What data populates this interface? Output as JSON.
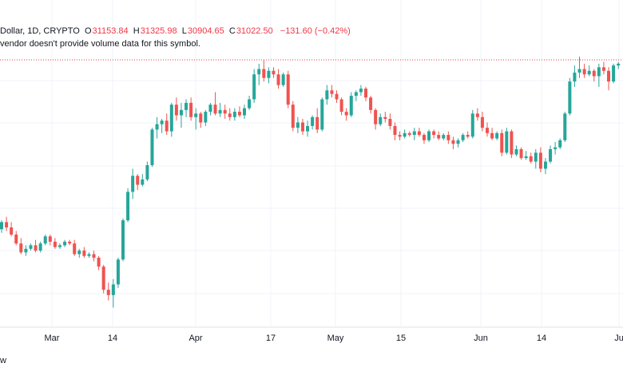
{
  "header": {
    "symbol_fragment": "Dollar, 1D, CRYPTO",
    "open_label": "O",
    "open_value": "31153.84",
    "high_label": "H",
    "high_value": "31325.98",
    "low_label": "L",
    "low_value": "30904.65",
    "close_label": "C",
    "close_value": "31022.50",
    "change": "−131.60 (−0.42%)",
    "volume_note": "vendor doesn't provide volume data for this symbol."
  },
  "footer": {
    "brand_fragment": "w"
  },
  "colors": {
    "up": "#26a69a",
    "down": "#ef5350",
    "grid": "#f0f3fa",
    "axis_text": "#131722",
    "price_line": "#f23645"
  },
  "chart_data": {
    "type": "candlestick",
    "title": "",
    "xlabel": "",
    "ylabel": "",
    "x_ticks": [
      "Mar",
      "14",
      "Apr",
      "17",
      "May",
      "15",
      "Jun",
      "14",
      "Ju"
    ],
    "ylim": [
      16300,
      31900
    ],
    "grid": true,
    "current_price": 31022.5,
    "candles": [
      [
        21800,
        22300,
        21600,
        22200
      ],
      [
        22200,
        22500,
        21700,
        21900
      ],
      [
        21900,
        22200,
        21400,
        21500
      ],
      [
        21500,
        21700,
        20900,
        21000
      ],
      [
        21000,
        21300,
        20400,
        20500
      ],
      [
        20500,
        20900,
        20300,
        20700
      ],
      [
        20700,
        21000,
        20600,
        20900
      ],
      [
        20900,
        21200,
        20500,
        20600
      ],
      [
        20600,
        21100,
        20500,
        21000
      ],
      [
        21000,
        21500,
        20900,
        21400
      ],
      [
        21400,
        21500,
        20900,
        21100
      ],
      [
        21100,
        21300,
        20700,
        20800
      ],
      [
        20800,
        21000,
        20700,
        20900
      ],
      [
        20900,
        21200,
        20800,
        21100
      ],
      [
        21100,
        21200,
        20900,
        21000
      ],
      [
        21000,
        21200,
        20300,
        20400
      ],
      [
        20400,
        20700,
        20200,
        20600
      ],
      [
        20600,
        20800,
        20200,
        20300
      ],
      [
        20300,
        20500,
        20200,
        20400
      ],
      [
        20400,
        20600,
        20000,
        20200
      ],
      [
        20200,
        20300,
        19500,
        19700
      ],
      [
        19700,
        19800,
        18200,
        18400
      ],
      [
        18400,
        18800,
        17800,
        18100
      ],
      [
        18100,
        19000,
        17400,
        18700
      ],
      [
        18700,
        20200,
        18500,
        20100
      ],
      [
        20100,
        22400,
        20000,
        22300
      ],
      [
        22300,
        24100,
        22200,
        23900
      ],
      [
        23900,
        25200,
        23500,
        24800
      ],
      [
        24800,
        24900,
        24000,
        24300
      ],
      [
        24300,
        24900,
        24200,
        24600
      ],
      [
        24600,
        25600,
        24500,
        25400
      ],
      [
        25400,
        27500,
        25300,
        27400
      ],
      [
        27400,
        28100,
        26900,
        27700
      ],
      [
        27700,
        28000,
        27200,
        27900
      ],
      [
        27900,
        28300,
        27100,
        27300
      ],
      [
        27300,
        28900,
        27000,
        28800
      ],
      [
        28800,
        29200,
        27900,
        28200
      ],
      [
        28200,
        28900,
        27500,
        28500
      ],
      [
        28500,
        29100,
        28100,
        28900
      ],
      [
        28900,
        29200,
        27900,
        28100
      ],
      [
        28100,
        28600,
        27400,
        28300
      ],
      [
        28300,
        28400,
        27500,
        27800
      ],
      [
        27800,
        28500,
        27600,
        28400
      ],
      [
        28400,
        28900,
        28200,
        28800
      ],
      [
        28800,
        29500,
        28200,
        28300
      ],
      [
        28300,
        28900,
        28100,
        28500
      ],
      [
        28500,
        28800,
        28000,
        28300
      ],
      [
        28300,
        28600,
        27900,
        28100
      ],
      [
        28100,
        28600,
        27900,
        28400
      ],
      [
        28400,
        28700,
        28100,
        28200
      ],
      [
        28200,
        28800,
        28000,
        28600
      ],
      [
        28600,
        29300,
        28500,
        29100
      ],
      [
        29100,
        30800,
        28900,
        30500
      ],
      [
        30500,
        31100,
        29900,
        30800
      ],
      [
        30800,
        31300,
        30100,
        30300
      ],
      [
        30300,
        30900,
        30000,
        30700
      ],
      [
        30700,
        30900,
        30300,
        30500
      ],
      [
        30500,
        30800,
        29700,
        29900
      ],
      [
        29900,
        30600,
        29800,
        30500
      ],
      [
        30500,
        30700,
        28600,
        28800
      ],
      [
        28800,
        29000,
        27300,
        27500
      ],
      [
        27500,
        28100,
        27200,
        27800
      ],
      [
        27800,
        28000,
        27100,
        27300
      ],
      [
        27300,
        27900,
        27000,
        27600
      ],
      [
        27600,
        28200,
        27400,
        28100
      ],
      [
        28100,
        28600,
        27200,
        27400
      ],
      [
        27400,
        29200,
        27300,
        29100
      ],
      [
        29100,
        29900,
        28800,
        29600
      ],
      [
        29600,
        29900,
        29200,
        29400
      ],
      [
        29400,
        29600,
        28900,
        29100
      ],
      [
        29100,
        29200,
        28200,
        28400
      ],
      [
        28400,
        28600,
        27900,
        28200
      ],
      [
        28200,
        29500,
        28100,
        29300
      ],
      [
        29300,
        29600,
        29000,
        29500
      ],
      [
        29500,
        29900,
        29300,
        29700
      ],
      [
        29700,
        29800,
        29000,
        29200
      ],
      [
        29200,
        29300,
        28300,
        28500
      ],
      [
        28500,
        28600,
        27400,
        27700
      ],
      [
        27700,
        28300,
        27600,
        28100
      ],
      [
        28100,
        28400,
        27800,
        28000
      ],
      [
        28000,
        28300,
        27400,
        27600
      ],
      [
        27600,
        27800,
        26800,
        27100
      ],
      [
        27100,
        27300,
        26800,
        27000
      ],
      [
        27000,
        27400,
        26900,
        27200
      ],
      [
        27200,
        27300,
        27000,
        27100
      ],
      [
        27100,
        27500,
        26800,
        27300
      ],
      [
        27300,
        27500,
        27000,
        27100
      ],
      [
        27100,
        27200,
        26600,
        26800
      ],
      [
        26800,
        27400,
        26700,
        27300
      ],
      [
        27300,
        27400,
        26900,
        27100
      ],
      [
        27100,
        27300,
        26800,
        26900
      ],
      [
        26900,
        27200,
        26800,
        27100
      ],
      [
        27100,
        27300,
        26600,
        26800
      ],
      [
        26800,
        27000,
        26300,
        26600
      ],
      [
        26600,
        26900,
        26400,
        26800
      ],
      [
        26800,
        27200,
        26700,
        27100
      ],
      [
        27100,
        27300,
        26900,
        27000
      ],
      [
        27000,
        28500,
        26900,
        28300
      ],
      [
        28300,
        28600,
        27900,
        28100
      ],
      [
        28100,
        28400,
        27300,
        27500
      ],
      [
        27500,
        27800,
        27000,
        27200
      ],
      [
        27200,
        27500,
        26800,
        26900
      ],
      [
        26900,
        27300,
        26800,
        27200
      ],
      [
        27200,
        27400,
        25900,
        26100
      ],
      [
        26100,
        27500,
        26000,
        27300
      ],
      [
        27300,
        27400,
        25800,
        26000
      ],
      [
        26000,
        26500,
        25900,
        26300
      ],
      [
        26300,
        26400,
        25700,
        25800
      ],
      [
        25800,
        26200,
        25700,
        25900
      ],
      [
        25900,
        26100,
        25500,
        25600
      ],
      [
        25600,
        26300,
        25200,
        26100
      ],
      [
        26100,
        26400,
        25000,
        25200
      ],
      [
        25200,
        25800,
        24900,
        25600
      ],
      [
        25600,
        26500,
        25500,
        26300
      ],
      [
        26300,
        26700,
        26000,
        26400
      ],
      [
        26400,
        26900,
        26300,
        26800
      ],
      [
        26800,
        28400,
        26700,
        28300
      ],
      [
        28300,
        30300,
        28200,
        30100
      ],
      [
        30100,
        31000,
        29800,
        30600
      ],
      [
        30600,
        31500,
        30300,
        30800
      ],
      [
        30800,
        31100,
        30300,
        30500
      ],
      [
        30500,
        31000,
        30400,
        30700
      ],
      [
        30700,
        30800,
        30100,
        30400
      ],
      [
        30400,
        31100,
        29800,
        30900
      ],
      [
        30900,
        31200,
        30500,
        30700
      ],
      [
        30700,
        30900,
        29600,
        30100
      ],
      [
        30100,
        31100,
        30000,
        31000
      ],
      [
        31000,
        31200,
        30800,
        31100
      ]
    ]
  }
}
